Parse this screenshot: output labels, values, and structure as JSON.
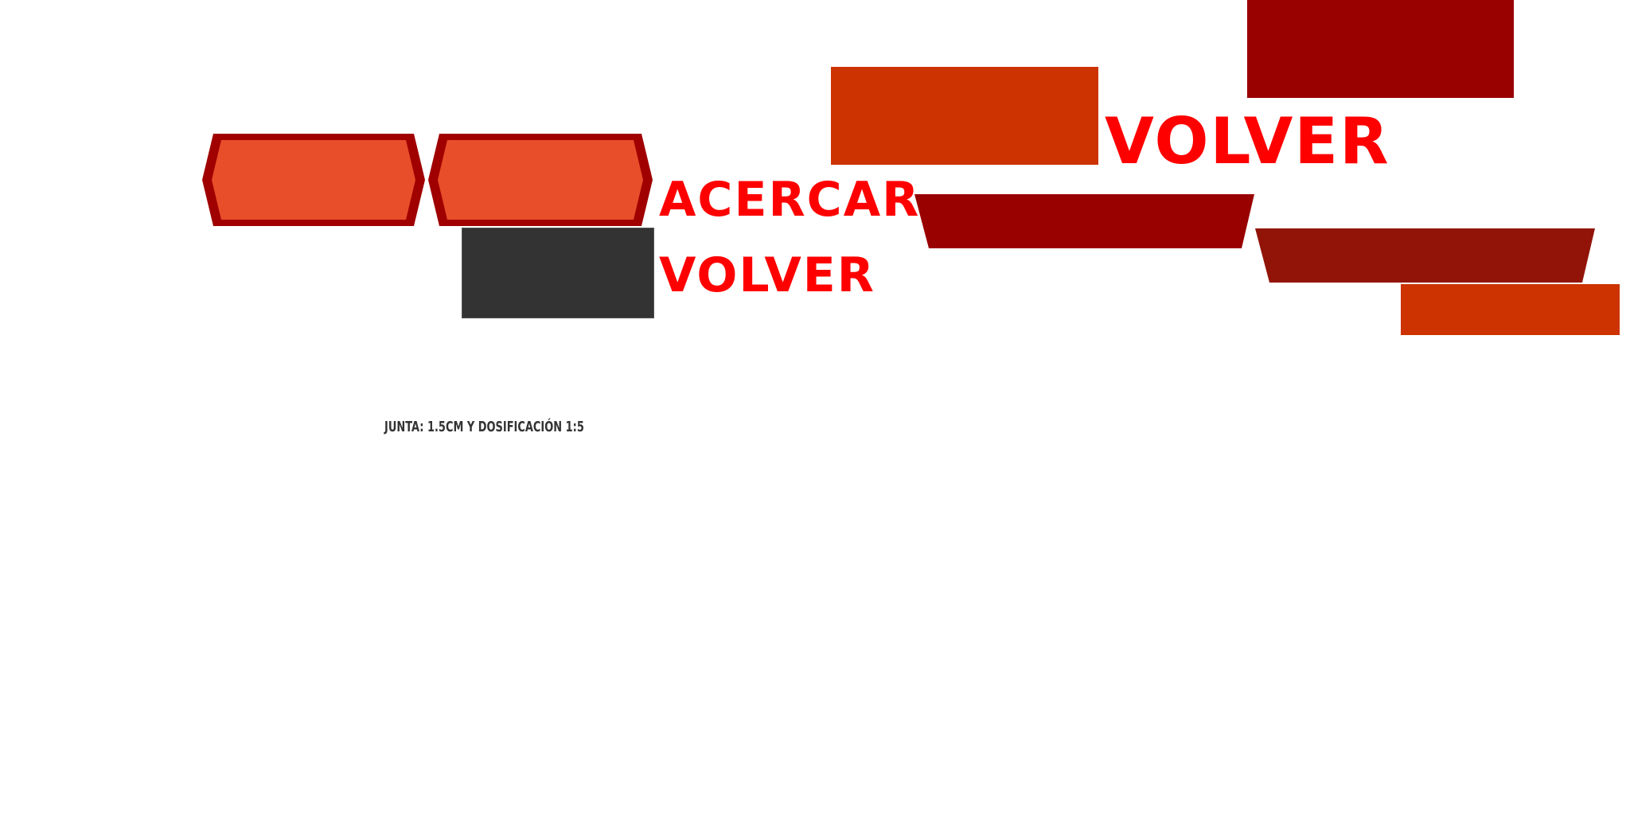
{
  "buttons": {
    "acercar_label": "ACERCAR",
    "volver_label_small": "VOLVER",
    "volver_label_large": "VOLVER"
  },
  "caption": {
    "text": "JUNTA: 1.5CM Y DOSIFICACIÓN 1:5"
  },
  "colors": {
    "hex_fill": "#e84e2a",
    "hex_border": "#a00000",
    "dark_gray": "#333333",
    "orange_red": "#cc3300",
    "dark_red": "#990000",
    "maroon": "#921408",
    "label_red": "#ff0000"
  }
}
